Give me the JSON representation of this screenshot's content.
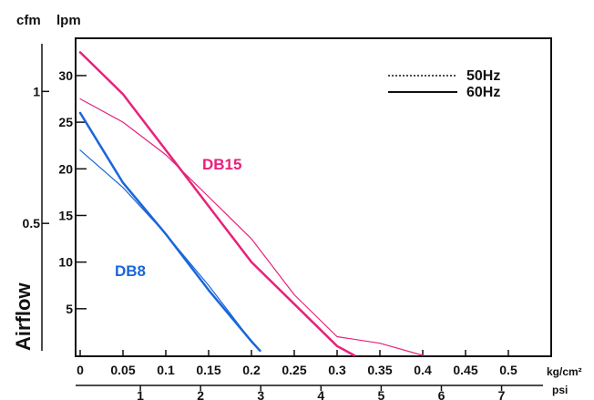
{
  "chart_data": {
    "type": "line",
    "header_units": {
      "cfm": "cfm",
      "lpm": "lpm"
    },
    "ylabel": "Airflow",
    "x_unit_primary": "kg/cm²",
    "x_unit_secondary": "psi",
    "x_ticks_primary": [
      "0",
      "0.05",
      "0.1",
      "0.15",
      "0.2",
      "0.25",
      "0.3",
      "0.35",
      "0.4",
      "0.45",
      "0.5"
    ],
    "x_ticks_secondary": [
      "1",
      "2",
      "3",
      "4",
      "5",
      "6",
      "7"
    ],
    "y_ticks_lpm": [
      "5",
      "10",
      "15",
      "20",
      "25",
      "30"
    ],
    "y_ticks_cfm": [
      "0.5",
      "1"
    ],
    "xlim": [
      0,
      0.55
    ],
    "ylim": [
      0,
      34
    ],
    "legend": [
      {
        "name": "50Hz",
        "style": "dotted"
      },
      {
        "name": "60Hz",
        "style": "solid"
      }
    ],
    "series": [
      {
        "name": "DB15",
        "freq": "60Hz",
        "color": "#e8217a",
        "x": [
          0,
          0.05,
          0.1,
          0.15,
          0.2,
          0.25,
          0.3,
          0.32
        ],
        "y": [
          32.5,
          28.0,
          22.0,
          16.0,
          10.0,
          5.5,
          1.0,
          0.0
        ]
      },
      {
        "name": "DB15",
        "freq": "50Hz",
        "color": "#e8217a",
        "x": [
          0,
          0.05,
          0.1,
          0.15,
          0.2,
          0.25,
          0.3,
          0.35,
          0.4
        ],
        "y": [
          27.5,
          25.0,
          21.5,
          17.0,
          12.5,
          6.5,
          2.0,
          1.3,
          0.0
        ]
      },
      {
        "name": "DB8",
        "freq": "60Hz",
        "color": "#1a66d9",
        "x": [
          0,
          0.05,
          0.1,
          0.15,
          0.2,
          0.21
        ],
        "y": [
          26.0,
          18.5,
          13.0,
          7.0,
          1.5,
          0.5
        ]
      },
      {
        "name": "DB8",
        "freq": "50Hz",
        "color": "#1a66d9",
        "x": [
          0,
          0.05,
          0.1,
          0.15,
          0.2,
          0.21
        ],
        "y": [
          22.0,
          18.0,
          13.0,
          7.5,
          1.5,
          0.5
        ]
      }
    ],
    "series_labels": [
      {
        "text": "DB15",
        "color": "#e8217a"
      },
      {
        "text": "DB8",
        "color": "#1a66d9"
      }
    ]
  }
}
